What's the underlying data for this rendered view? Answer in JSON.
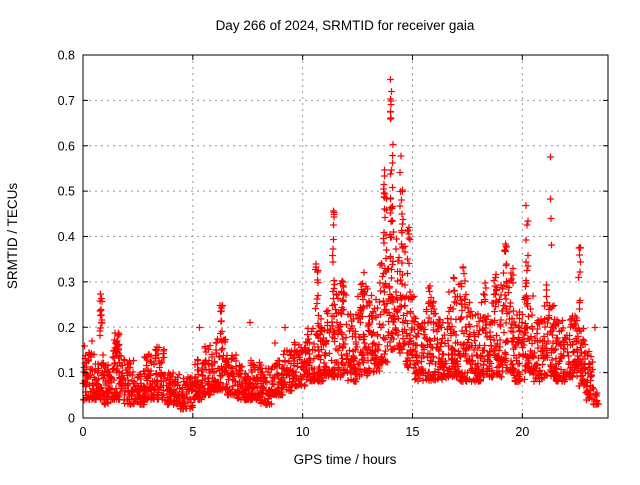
{
  "page": {
    "background": "#ffffff",
    "text_color": "#000000"
  },
  "chart_data": {
    "type": "scatter",
    "title": "Day 266 of 2024, SRMTID for receiver gaia",
    "xlabel": "GPS time / hours",
    "ylabel": "SRMTID / TECUs",
    "xlim": [
      0,
      23.9
    ],
    "ylim": [
      0,
      0.8
    ],
    "xticks": [
      0,
      5,
      10,
      15,
      20
    ],
    "xtick_labels": [
      "0",
      "5",
      "10",
      "15",
      "20"
    ],
    "yticks": [
      0,
      0.1,
      0.2,
      0.3,
      0.4,
      0.5,
      0.6,
      0.7,
      0.8
    ],
    "ytick_labels": [
      "0",
      "0.1",
      "0.2",
      "0.3",
      "0.4",
      "0.5",
      "0.6",
      "0.7",
      "0.8"
    ],
    "grid": {
      "visible": true,
      "style": "dashed",
      "color": "#9b9b9b"
    },
    "frame_color": "#000000",
    "legend": "none",
    "series": [
      {
        "name": "SRMTID",
        "marker": "plus",
        "color": "#ff0000",
        "seed": 42,
        "band_skew": 1.6,
        "band_profile": [
          [
            0.0,
            0.5,
            0.04,
            0.16,
            60
          ],
          [
            0.5,
            0.8,
            0.04,
            0.12,
            35
          ],
          [
            0.8,
            0.95,
            0.04,
            0.14,
            20
          ],
          [
            0.95,
            1.3,
            0.03,
            0.12,
            42
          ],
          [
            1.3,
            1.8,
            0.04,
            0.18,
            60
          ],
          [
            1.8,
            2.3,
            0.03,
            0.13,
            58
          ],
          [
            2.3,
            2.8,
            0.03,
            0.11,
            58
          ],
          [
            2.8,
            3.3,
            0.04,
            0.14,
            58
          ],
          [
            3.3,
            3.7,
            0.04,
            0.16,
            46
          ],
          [
            3.7,
            4.4,
            0.03,
            0.1,
            75
          ],
          [
            4.4,
            5.0,
            0.02,
            0.09,
            62
          ],
          [
            5.0,
            5.5,
            0.04,
            0.13,
            55
          ],
          [
            5.5,
            6.0,
            0.05,
            0.16,
            55
          ],
          [
            6.0,
            6.5,
            0.06,
            0.18,
            55
          ],
          [
            6.5,
            7.0,
            0.05,
            0.14,
            52
          ],
          [
            7.0,
            7.6,
            0.04,
            0.12,
            68
          ],
          [
            7.6,
            8.1,
            0.04,
            0.13,
            60
          ],
          [
            8.1,
            8.6,
            0.03,
            0.11,
            52
          ],
          [
            8.6,
            9.1,
            0.05,
            0.13,
            52
          ],
          [
            9.1,
            9.6,
            0.06,
            0.15,
            52
          ],
          [
            9.6,
            10.1,
            0.07,
            0.17,
            55
          ],
          [
            10.1,
            10.6,
            0.08,
            0.2,
            55
          ],
          [
            10.6,
            11.0,
            0.08,
            0.22,
            48
          ],
          [
            11.0,
            11.4,
            0.09,
            0.24,
            45
          ],
          [
            11.4,
            12.0,
            0.09,
            0.28,
            68
          ],
          [
            12.0,
            12.5,
            0.08,
            0.24,
            56
          ],
          [
            12.5,
            13.0,
            0.09,
            0.3,
            60
          ],
          [
            13.0,
            13.5,
            0.1,
            0.28,
            60
          ],
          [
            13.5,
            13.9,
            0.12,
            0.35,
            45
          ],
          [
            13.9,
            14.3,
            0.15,
            0.42,
            50
          ],
          [
            14.3,
            14.7,
            0.14,
            0.38,
            45
          ],
          [
            14.7,
            15.1,
            0.11,
            0.3,
            45
          ],
          [
            15.1,
            15.6,
            0.08,
            0.22,
            55
          ],
          [
            15.6,
            16.1,
            0.08,
            0.26,
            55
          ],
          [
            16.1,
            16.6,
            0.08,
            0.22,
            55
          ],
          [
            16.6,
            17.1,
            0.09,
            0.28,
            60
          ],
          [
            17.1,
            17.6,
            0.08,
            0.3,
            60
          ],
          [
            17.6,
            18.1,
            0.08,
            0.24,
            60
          ],
          [
            18.1,
            18.6,
            0.09,
            0.26,
            60
          ],
          [
            18.6,
            19.1,
            0.09,
            0.3,
            60
          ],
          [
            19.1,
            19.6,
            0.1,
            0.33,
            60
          ],
          [
            19.6,
            20.1,
            0.08,
            0.24,
            60
          ],
          [
            20.1,
            20.5,
            0.1,
            0.28,
            50
          ],
          [
            20.5,
            21.0,
            0.08,
            0.22,
            55
          ],
          [
            21.0,
            21.5,
            0.09,
            0.25,
            55
          ],
          [
            21.5,
            22.0,
            0.08,
            0.22,
            55
          ],
          [
            22.0,
            22.5,
            0.09,
            0.24,
            60
          ],
          [
            22.5,
            22.9,
            0.07,
            0.2,
            50
          ],
          [
            22.9,
            23.2,
            0.04,
            0.15,
            32
          ],
          [
            23.2,
            23.5,
            0.03,
            0.1,
            15
          ]
        ],
        "spike_columns": [
          [
            0.83,
            0.05,
            0.14,
            0.29,
            16
          ],
          [
            1.55,
            0.12,
            0.13,
            0.19,
            12
          ],
          [
            6.3,
            0.06,
            0.14,
            0.25,
            12
          ],
          [
            10.65,
            0.07,
            0.2,
            0.35,
            13
          ],
          [
            11.4,
            0.05,
            0.22,
            0.46,
            16
          ],
          [
            11.8,
            0.08,
            0.2,
            0.31,
            10
          ],
          [
            12.75,
            0.1,
            0.24,
            0.33,
            9
          ],
          [
            13.75,
            0.08,
            0.33,
            0.55,
            18
          ],
          [
            14.05,
            0.07,
            0.4,
            0.76,
            24
          ],
          [
            14.5,
            0.08,
            0.36,
            0.61,
            15
          ],
          [
            14.85,
            0.08,
            0.28,
            0.42,
            9
          ],
          [
            15.8,
            0.08,
            0.24,
            0.3,
            5
          ],
          [
            16.9,
            0.08,
            0.24,
            0.31,
            6
          ],
          [
            17.35,
            0.07,
            0.26,
            0.34,
            6
          ],
          [
            18.3,
            0.07,
            0.24,
            0.3,
            5
          ],
          [
            18.75,
            0.07,
            0.26,
            0.34,
            6
          ],
          [
            19.25,
            0.07,
            0.28,
            0.4,
            9
          ],
          [
            20.2,
            0.07,
            0.26,
            0.47,
            13
          ],
          [
            21.15,
            0.06,
            0.22,
            0.3,
            5
          ],
          [
            22.6,
            0.05,
            0.24,
            0.38,
            9
          ]
        ],
        "outlier_points": [
          [
            0.4,
            0.17
          ],
          [
            3.45,
            0.155
          ],
          [
            5.3,
            0.2
          ],
          [
            7.6,
            0.21
          ],
          [
            8.75,
            0.165
          ],
          [
            9.2,
            0.2
          ],
          [
            21.28,
            0.575
          ],
          [
            21.28,
            0.483
          ],
          [
            21.3,
            0.44
          ],
          [
            21.32,
            0.381
          ],
          [
            22.58,
            0.375
          ],
          [
            23.3,
            0.2
          ]
        ]
      }
    ]
  }
}
